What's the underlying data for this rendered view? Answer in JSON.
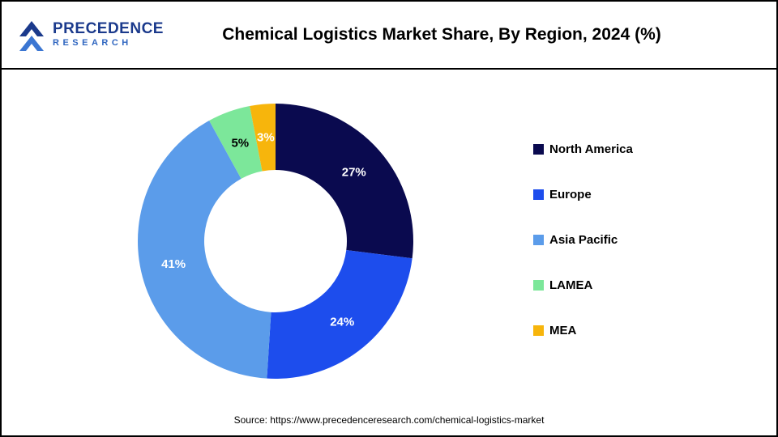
{
  "header": {
    "title": "Chemical Logistics Market Share, By Region, 2024 (%)",
    "logo": {
      "line1": "PRECEDENCE",
      "line2": "RESEARCH",
      "color_navy": "#1b3a8c",
      "color_blue": "#2f66c0"
    }
  },
  "chart_data": {
    "type": "pie",
    "subtype": "donut",
    "title": "Chemical Logistics Market Share, By Region, 2024 (%)",
    "unit": "%",
    "start_angle_deg": 0,
    "direction": "clockwise",
    "legend_position": "right",
    "categories": [
      "North America",
      "Europe",
      "Asia Pacific",
      "LAMEA",
      "MEA"
    ],
    "values": [
      27,
      24,
      41,
      5,
      3
    ],
    "slices": [
      {
        "label": "North America",
        "value": 27,
        "color": "#0a0a4f",
        "label_color": "#ffffff"
      },
      {
        "label": "Europe",
        "value": 24,
        "color": "#1d4ded",
        "label_color": "#ffffff"
      },
      {
        "label": "Asia Pacific",
        "value": 41,
        "color": "#5b9cea",
        "label_color": "#ffffff"
      },
      {
        "label": "LAMEA",
        "value": 5,
        "color": "#7ce79a",
        "label_color": "#000000"
      },
      {
        "label": "MEA",
        "value": 3,
        "color": "#f7b50c",
        "label_color": "#ffffff"
      }
    ]
  },
  "footer": {
    "source": "Source: https://www.precedenceresearch.com/chemical-logistics-market"
  }
}
